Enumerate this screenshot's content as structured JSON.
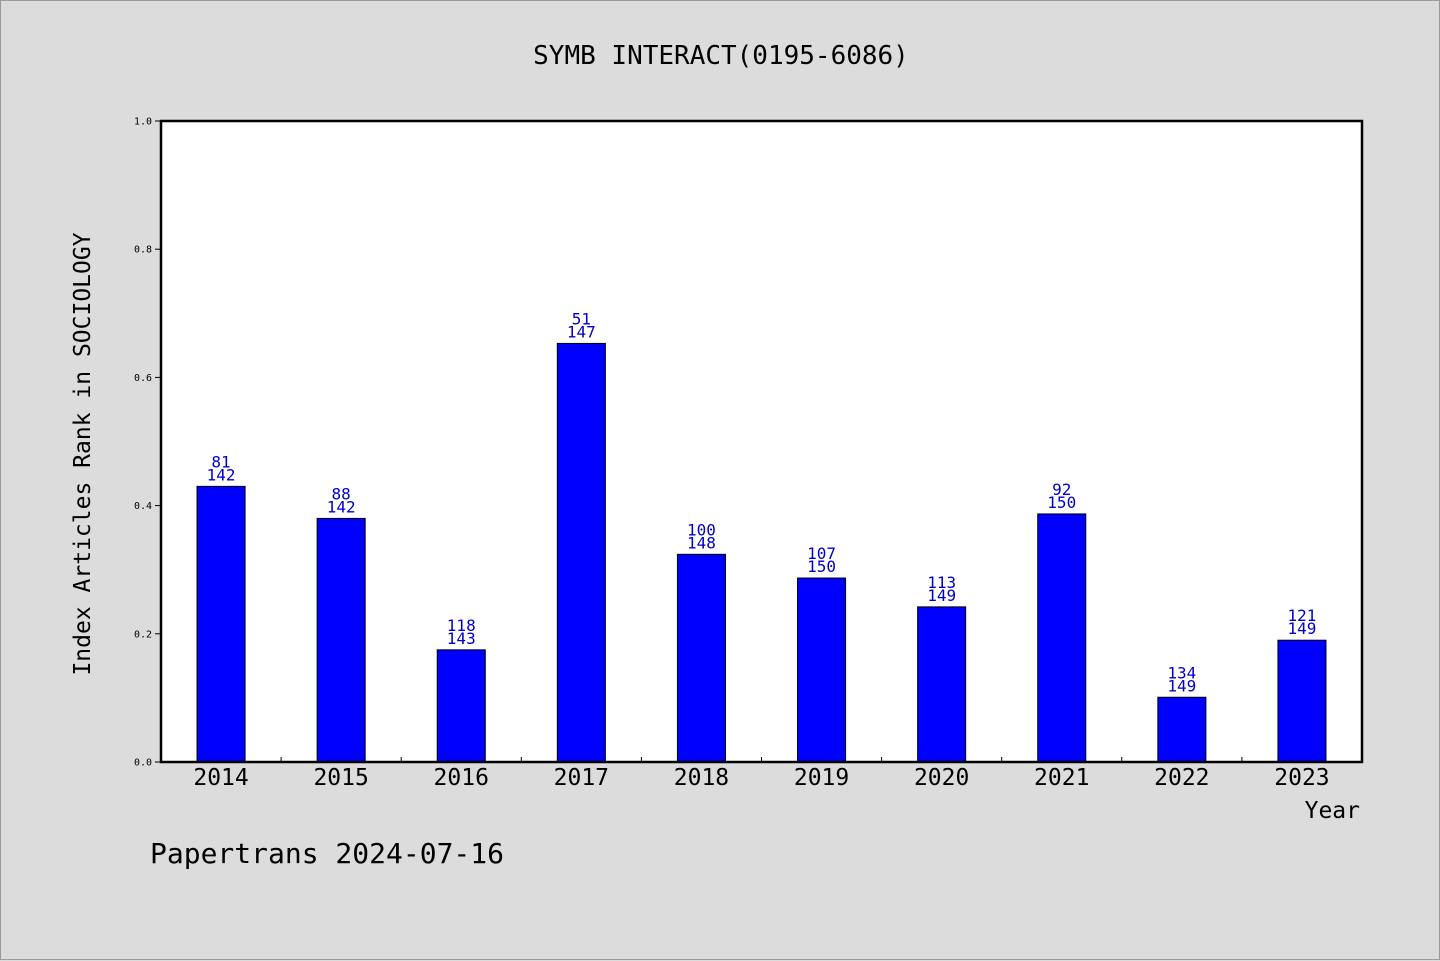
{
  "chart_data": {
    "type": "bar",
    "title": "SYMB INTERACT(0195-6086)",
    "xlabel": "Year",
    "ylabel": "Index Articles Rank in SOCIOLOGY",
    "categories": [
      "2014",
      "2015",
      "2016",
      "2017",
      "2018",
      "2019",
      "2020",
      "2021",
      "2022",
      "2023"
    ],
    "values": [
      0.43,
      0.38,
      0.175,
      0.653,
      0.324,
      0.287,
      0.242,
      0.387,
      0.101,
      0.19
    ],
    "rank_labels": [
      "81",
      "88",
      "118",
      "51",
      "100",
      "107",
      "113",
      "92",
      "134",
      "121"
    ],
    "total_labels": [
      "142",
      "142",
      "143",
      "147",
      "148",
      "150",
      "149",
      "150",
      "149",
      "149"
    ],
    "ylim": [
      0,
      1.0
    ],
    "yticks": [
      "0.0",
      "0.2",
      "0.4",
      "0.6",
      "0.8",
      "1.0"
    ],
    "grid": false,
    "bar_color": "#0000ff",
    "label_color": "#0000cc"
  },
  "footer": {
    "text": "Papertrans 2024-07-16"
  }
}
